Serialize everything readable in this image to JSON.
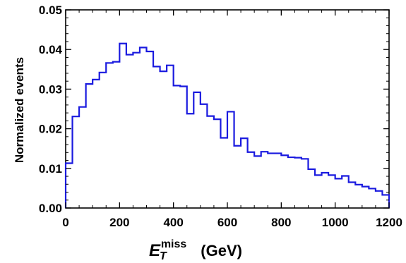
{
  "chart_data": {
    "type": "histogram",
    "title": "",
    "xlabel": {
      "symbol": "E",
      "subscript": "T",
      "superscript": "miss",
      "unit": "(GeV)"
    },
    "ylabel": "Normalized events",
    "xlim": [
      0,
      1200
    ],
    "ylim": [
      0,
      0.05
    ],
    "x_ticks": [
      0,
      200,
      400,
      600,
      800,
      1000,
      1200
    ],
    "y_ticks": [
      0.0,
      0.01,
      0.02,
      0.03,
      0.04,
      0.05
    ],
    "x_tick_labels": [
      "0",
      "200",
      "400",
      "600",
      "800",
      "1000",
      "1200"
    ],
    "y_tick_labels": [
      "0.00",
      "0.01",
      "0.02",
      "0.03",
      "0.04",
      "0.05"
    ],
    "grid": false,
    "legend": "none",
    "bin_width": 25,
    "series": [
      {
        "color": "#1a1adf",
        "bin_edges_start": 0,
        "values": [
          0.0113,
          0.0231,
          0.0255,
          0.0313,
          0.0324,
          0.0342,
          0.0366,
          0.0369,
          0.0415,
          0.0387,
          0.0392,
          0.0405,
          0.0395,
          0.0357,
          0.0345,
          0.036,
          0.0309,
          0.0307,
          0.0238,
          0.0292,
          0.0262,
          0.0232,
          0.0224,
          0.0177,
          0.0243,
          0.0157,
          0.0176,
          0.0141,
          0.0131,
          0.0142,
          0.0138,
          0.0138,
          0.0133,
          0.0128,
          0.0127,
          0.0124,
          0.0098,
          0.0083,
          0.0089,
          0.0083,
          0.0074,
          0.0081,
          0.0065,
          0.0059,
          0.0054,
          0.0049,
          0.0043,
          0.0033
        ]
      }
    ]
  }
}
